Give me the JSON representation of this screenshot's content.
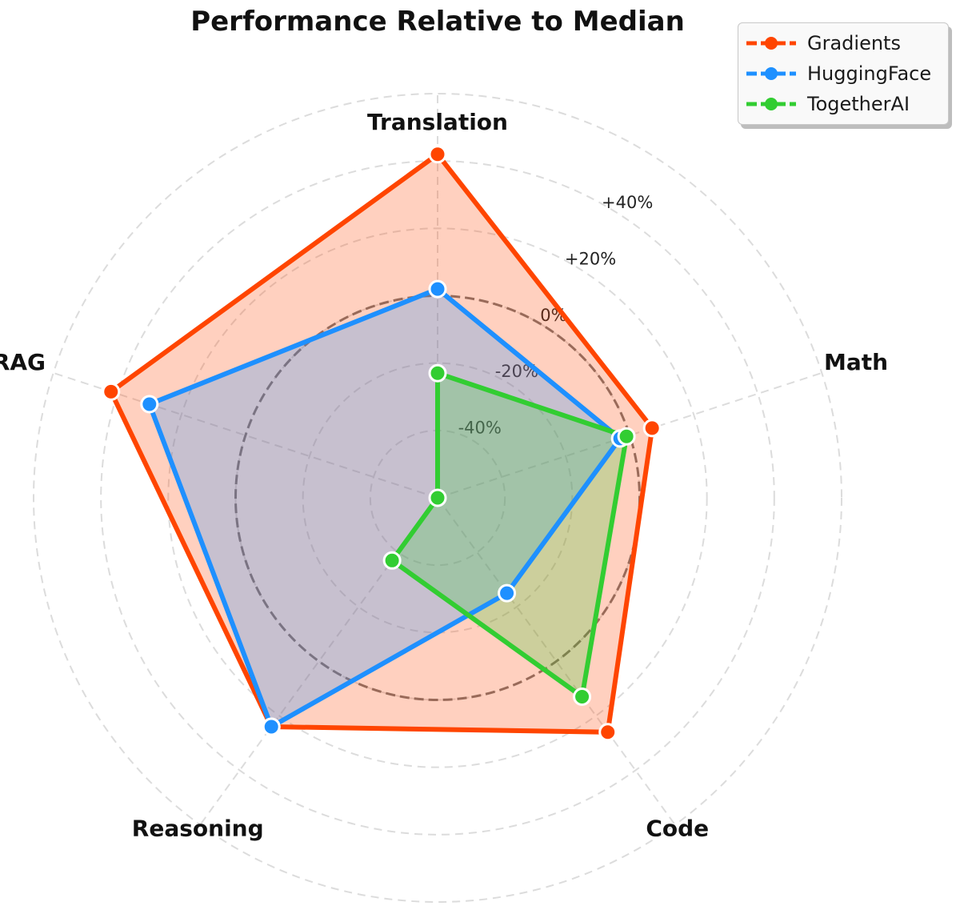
{
  "chart_data": {
    "type": "radar",
    "title": "Performance Relative to Median",
    "categories": [
      "Translation",
      "Math",
      "Code",
      "Reasoning",
      "RAG"
    ],
    "r_ticks": [
      "-40%",
      "-20%",
      "0%",
      "+20%",
      "+40%"
    ],
    "r_tick_values": [
      -40,
      -20,
      0,
      20,
      40
    ],
    "r_range": [
      -60,
      60
    ],
    "reference_circle": 0,
    "grid": true,
    "legend_position": "top-right",
    "series": [
      {
        "name": "Gradients",
        "color": "#FF4500",
        "fill": "#FF4500",
        "values": [
          42,
          7,
          26,
          24,
          42
        ]
      },
      {
        "name": "HuggingFace",
        "color": "#1E90FF",
        "fill": "#1E90FF",
        "values": [
          2,
          -3,
          -25,
          24,
          30
        ]
      },
      {
        "name": "TogetherAI",
        "color": "#32CD32",
        "fill": "#32CD32",
        "values": [
          -23,
          -1,
          13,
          -37,
          -60
        ]
      }
    ]
  }
}
